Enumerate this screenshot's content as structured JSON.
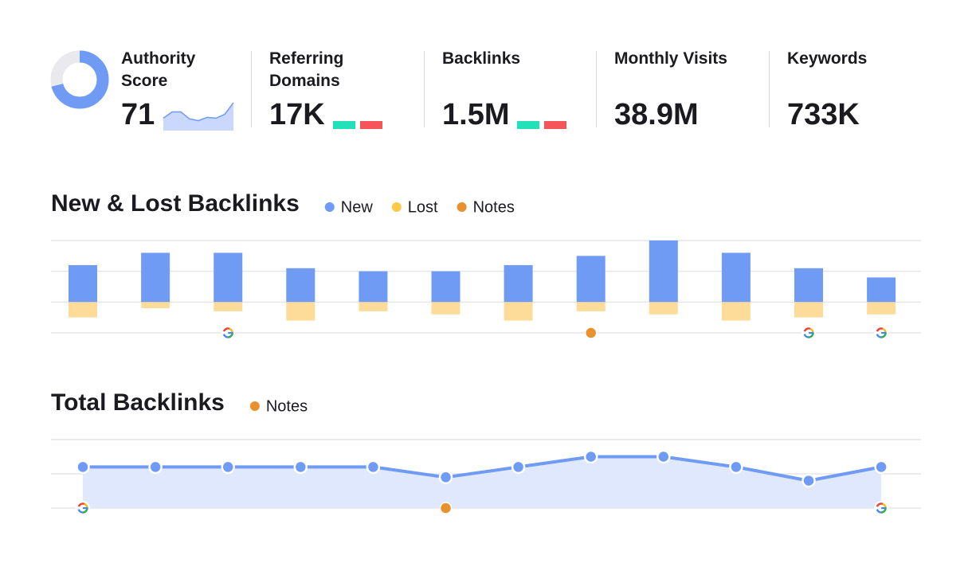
{
  "metrics": [
    {
      "label": "Authority Score",
      "value": 71,
      "sparkline": [
        0.43,
        0.66,
        0.66,
        0.4,
        0.34,
        0.46,
        0.43,
        0.57,
        1
      ]
    },
    {
      "label": "Referring Domains",
      "value": "17K",
      "trend": true
    },
    {
      "label": "Backlinks",
      "value": "1.5M",
      "trend": true
    },
    {
      "label": "Monthly Visits",
      "value": "38.9M"
    },
    {
      "label": "Keywords",
      "value": "733K"
    }
  ],
  "chart_data": [
    {
      "type": "bar",
      "title": "New & Lost Backlinks",
      "categories": [
        null,
        null,
        null,
        null,
        null,
        null,
        null,
        null,
        null,
        null,
        null,
        null
      ],
      "series": [
        {
          "name": "New",
          "color": "#6f9bf5",
          "values": [
            1.2,
            1.6,
            1.6,
            1.1,
            1.0,
            1.0,
            1.2,
            1.5,
            2.0,
            1.6,
            1.1,
            0.8
          ]
        },
        {
          "name": "Lost",
          "color": "#fddc9a",
          "values": [
            -0.5,
            -0.2,
            -0.3,
            -0.6,
            -0.3,
            -0.4,
            -0.6,
            -0.3,
            -0.4,
            -0.6,
            -0.5,
            -0.4
          ]
        }
      ],
      "legend_colors": [
        "#6f9bf5",
        "#fcc84a"
      ],
      "notes": {
        "name": "Notes",
        "color": "#e8912d",
        "indices": [
          7
        ]
      },
      "google_updates": [
        2,
        10,
        11
      ],
      "ylim": [
        -1,
        2
      ],
      "yticks": [
        -1,
        0,
        1,
        2
      ],
      "grid": true
    },
    {
      "type": "line",
      "title": "Total Backlinks",
      "categories": [
        null,
        null,
        null,
        null,
        null,
        null,
        null,
        null,
        null,
        null,
        null,
        null
      ],
      "series": [
        {
          "color": "#6f9bf5",
          "values": [
            1.2,
            1.2,
            1.2,
            1.2,
            1.2,
            0.9,
            1.2,
            1.5,
            1.5,
            1.2,
            0.8,
            1.2
          ]
        }
      ],
      "notes": {
        "name": "Notes",
        "color": "#e8912d",
        "indices": [
          5
        ]
      },
      "google_updates": [
        0,
        11
      ],
      "ylim": [
        0,
        2
      ],
      "yticks": [
        0,
        1,
        2
      ],
      "grid": true
    }
  ]
}
